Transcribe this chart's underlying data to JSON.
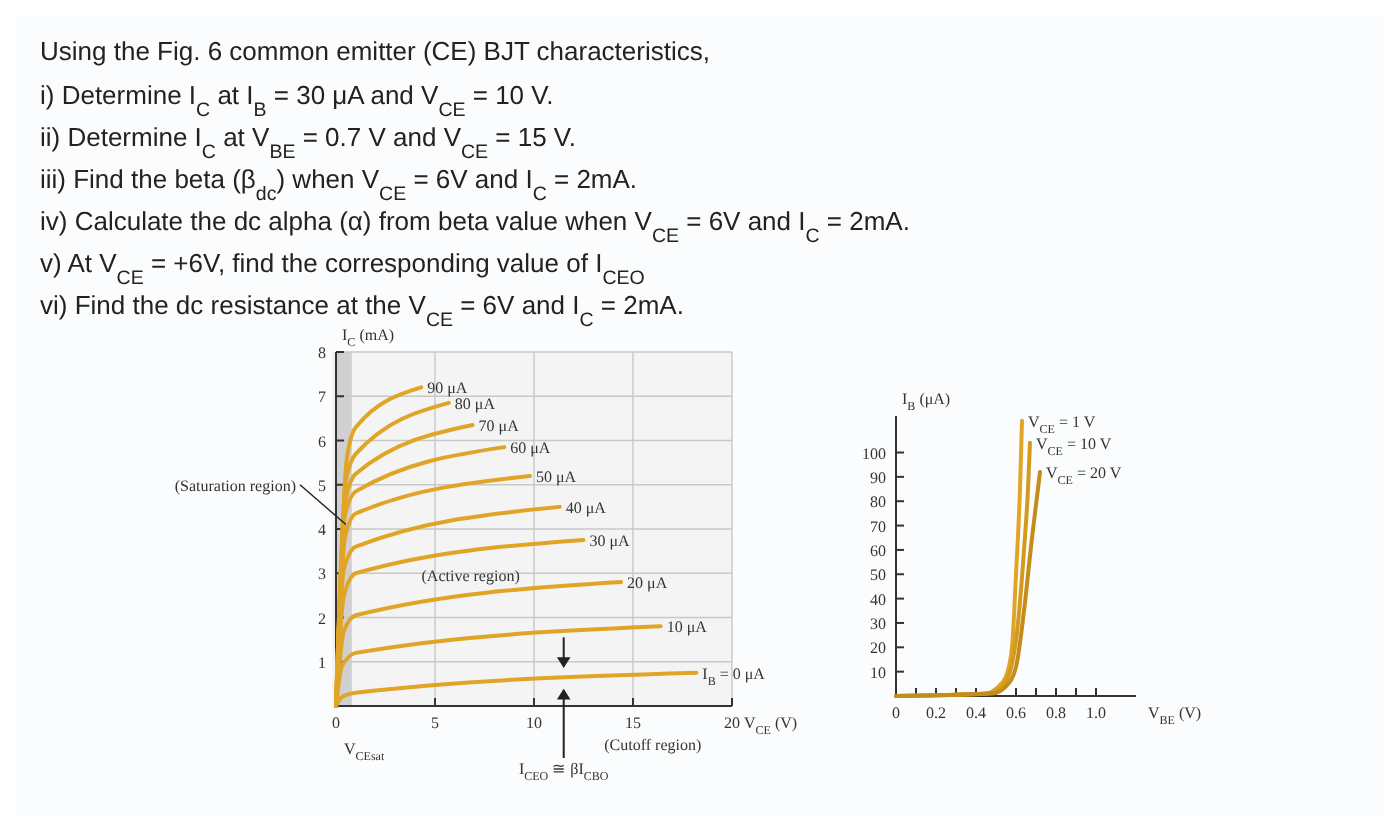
{
  "chart_data": [
    {
      "type": "other",
      "title": "Using the Fig. 6 common emitter (CE) BJT characteristics,",
      "annotations": [
        "i) Determine I$_{C}$ at I$_{B}$ = 30 μA and V$_{CE}$ = 10 V.",
        "ii) Determine I$_{C}$ at V$_{BE}$ = 0.7 V and V$_{CE}$ = 15 V.",
        "iii) Find the beta (β$_{dc}$) when V$_{CE}$ = 6V and I$_{C}$ = 2mA.",
        "iv) Calculate the dc alpha (α) from beta value when V$_{CE}$ = 6V and I$_{C}$ = 2mA.",
        "v) At V$_{CE}$ = +6V, find the corresponding value of I$_{CEO}$",
        "vi) Find the dc resistance at the V$_{CE}$ = 6V and I$_{C}$ = 2mA."
      ]
    },
    {
      "type": "line",
      "xlabel": "V$_{CE}$ (V)",
      "ylabel": "I$_{C}$ (mA)",
      "xlim": [
        0,
        20
      ],
      "xticks": [
        0,
        5,
        10,
        15,
        20
      ],
      "ylim": [
        0,
        8
      ],
      "yticks": [
        1,
        2,
        3,
        4,
        5,
        6,
        7,
        8
      ],
      "grid": true,
      "bands": [
        {
          "axis": "x",
          "from": 0,
          "to": 0.8,
          "color": "#d0d0d0"
        }
      ],
      "annotations": [
        "(Saturation region)",
        "(Active region)",
        "(Cutoff region)",
        "I$_{CEO}$ ≅ βI$_{CBO}$",
        "V$_{CEsat}$"
      ],
      "series": [
        {
          "name": "I$_{B}$ = 0 μA",
          "color": "#e0a526",
          "x": [
            0,
            0.3,
            1,
            18.2
          ],
          "values": [
            0,
            0.2,
            0.3,
            0.75
          ]
        },
        {
          "name": "10 μA",
          "color": "#e0a526",
          "x": [
            0,
            0.3,
            1,
            16.4
          ],
          "values": [
            0,
            0.9,
            1.2,
            1.8
          ]
        },
        {
          "name": "20 μA",
          "color": "#e0a526",
          "x": [
            0,
            0.4,
            1,
            14.4
          ],
          "values": [
            0,
            1.7,
            2.05,
            2.8
          ]
        },
        {
          "name": "30 μA",
          "color": "#e0a526",
          "x": [
            0,
            0.4,
            1,
            12.5
          ],
          "values": [
            0,
            2.5,
            3,
            3.75
          ]
        },
        {
          "name": "40 μA",
          "color": "#e0a526",
          "x": [
            0,
            0.4,
            1,
            11.3
          ],
          "values": [
            0,
            3.1,
            3.6,
            4.5
          ]
        },
        {
          "name": "50 μA",
          "color": "#e0a526",
          "x": [
            0,
            0.45,
            1,
            9.8
          ],
          "values": [
            0,
            3.8,
            4.35,
            5.2
          ]
        },
        {
          "name": "60 μA",
          "color": "#e0a526",
          "x": [
            0,
            0.45,
            1,
            8.5
          ],
          "values": [
            0,
            4.3,
            4.85,
            5.85
          ]
        },
        {
          "name": "70 μA",
          "color": "#e0a526",
          "x": [
            0,
            0.5,
            1,
            6.9
          ],
          "values": [
            0,
            4.7,
            5.25,
            6.35
          ]
        },
        {
          "name": "80 μA",
          "color": "#e0a526",
          "x": [
            0,
            0.5,
            1,
            5.7
          ],
          "values": [
            0,
            5.1,
            5.7,
            6.85
          ]
        },
        {
          "name": "90 μA",
          "color": "#e0a526",
          "x": [
            0,
            0.55,
            1,
            4.3
          ],
          "values": [
            0,
            5.6,
            6.3,
            7.2
          ]
        }
      ]
    },
    {
      "type": "line",
      "xlabel": "V$_{BE}$ (V)",
      "ylabel": "I$_{B}$ (μA)",
      "xlim": [
        0,
        1.2
      ],
      "xticks": [
        0,
        {
          "value": 0.1,
          "label": null
        },
        0.2,
        {
          "value": 0.3,
          "label": null
        },
        0.4,
        {
          "value": 0.5,
          "label": null
        },
        0.6,
        {
          "value": 0.7,
          "label": null
        },
        0.8,
        {
          "value": 0.9,
          "label": null
        },
        {
          "value": 1.0,
          "label": "1.0"
        }
      ],
      "ylim": [
        0,
        115
      ],
      "yticks": [
        10,
        20,
        30,
        40,
        50,
        60,
        70,
        80,
        90,
        100
      ],
      "series": [
        {
          "name": "V$_{CE}$ = 1 V",
          "color": "#e0a526",
          "x": [
            0,
            0.45,
            0.5,
            0.55,
            0.58,
            0.6,
            0.62,
            0.63
          ],
          "values": [
            0,
            1,
            3,
            8,
            20,
            50,
            85,
            113
          ]
        },
        {
          "name": "V$_{CE}$ = 10 V",
          "color": "#d49a1e",
          "x": [
            0,
            0.45,
            0.52,
            0.57,
            0.61,
            0.64,
            0.66,
            0.67
          ],
          "values": [
            0,
            1,
            3,
            10,
            30,
            60,
            85,
            104
          ]
        },
        {
          "name": "V$_{CE}$ = 20 V",
          "color": "#c48c18",
          "x": [
            0,
            0.48,
            0.55,
            0.6,
            0.64,
            0.68,
            0.72
          ],
          "values": [
            0,
            1,
            4,
            12,
            35,
            65,
            92
          ]
        }
      ]
    }
  ]
}
